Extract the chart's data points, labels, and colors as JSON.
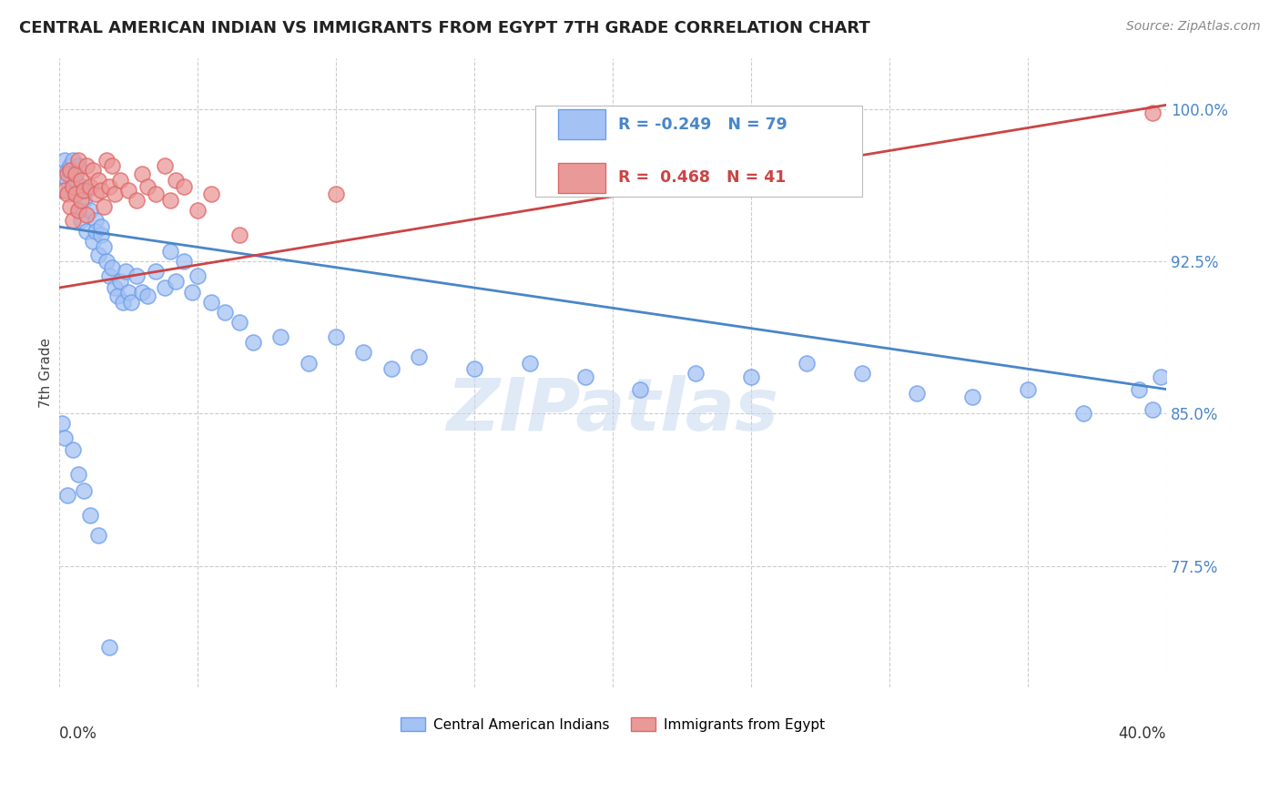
{
  "title": "CENTRAL AMERICAN INDIAN VS IMMIGRANTS FROM EGYPT 7TH GRADE CORRELATION CHART",
  "source": "Source: ZipAtlas.com",
  "ylabel": "7th Grade",
  "xmin": 0.0,
  "xmax": 0.4,
  "ymin": 0.715,
  "ymax": 1.025,
  "legend_blue_label": "Central American Indians",
  "legend_pink_label": "Immigrants from Egypt",
  "R_blue": -0.249,
  "N_blue": 79,
  "R_pink": 0.468,
  "N_pink": 41,
  "blue_color": "#a4c2f4",
  "pink_color": "#ea9999",
  "blue_edge_color": "#6d9eeb",
  "pink_edge_color": "#e06666",
  "blue_line_color": "#4a86c8",
  "pink_line_color": "#cc4444",
  "watermark_text": "ZIPatlas",
  "blue_trend_y0": 0.942,
  "blue_trend_y1": 0.862,
  "pink_trend_y0": 0.912,
  "pink_trend_y1": 1.002,
  "ytick_vals": [
    0.775,
    0.85,
    0.925,
    1.0
  ],
  "ytick_labels": [
    "77.5%",
    "85.0%",
    "92.5%",
    "100.0%"
  ],
  "xtick_vals": [
    0.0,
    0.05,
    0.1,
    0.15,
    0.2,
    0.25,
    0.3,
    0.35,
    0.4
  ],
  "blue_dots": {
    "x": [
      0.001,
      0.002,
      0.003,
      0.003,
      0.004,
      0.004,
      0.005,
      0.005,
      0.006,
      0.006,
      0.007,
      0.007,
      0.008,
      0.008,
      0.009,
      0.01,
      0.01,
      0.011,
      0.012,
      0.013,
      0.013,
      0.014,
      0.015,
      0.015,
      0.016,
      0.017,
      0.018,
      0.019,
      0.02,
      0.021,
      0.022,
      0.023,
      0.024,
      0.025,
      0.026,
      0.028,
      0.03,
      0.032,
      0.035,
      0.038,
      0.04,
      0.042,
      0.045,
      0.048,
      0.05,
      0.055,
      0.06,
      0.065,
      0.07,
      0.08,
      0.09,
      0.1,
      0.11,
      0.12,
      0.13,
      0.15,
      0.17,
      0.19,
      0.21,
      0.23,
      0.25,
      0.27,
      0.29,
      0.31,
      0.33,
      0.35,
      0.37,
      0.39,
      0.395,
      0.398,
      0.001,
      0.002,
      0.003,
      0.005,
      0.007,
      0.009,
      0.011,
      0.014,
      0.018
    ],
    "y": [
      0.96,
      0.975,
      0.97,
      0.965,
      0.972,
      0.968,
      0.975,
      0.96,
      0.965,
      0.958,
      0.972,
      0.95,
      0.962,
      0.945,
      0.955,
      0.96,
      0.94,
      0.95,
      0.935,
      0.945,
      0.94,
      0.928,
      0.938,
      0.942,
      0.932,
      0.925,
      0.918,
      0.922,
      0.912,
      0.908,
      0.915,
      0.905,
      0.92,
      0.91,
      0.905,
      0.918,
      0.91,
      0.908,
      0.92,
      0.912,
      0.93,
      0.915,
      0.925,
      0.91,
      0.918,
      0.905,
      0.9,
      0.895,
      0.885,
      0.888,
      0.875,
      0.888,
      0.88,
      0.872,
      0.878,
      0.872,
      0.875,
      0.868,
      0.862,
      0.87,
      0.868,
      0.875,
      0.87,
      0.86,
      0.858,
      0.862,
      0.85,
      0.862,
      0.852,
      0.868,
      0.845,
      0.838,
      0.81,
      0.832,
      0.82,
      0.812,
      0.8,
      0.79,
      0.735
    ]
  },
  "pink_dots": {
    "x": [
      0.002,
      0.003,
      0.003,
      0.004,
      0.004,
      0.005,
      0.005,
      0.006,
      0.006,
      0.007,
      0.007,
      0.008,
      0.008,
      0.009,
      0.01,
      0.01,
      0.011,
      0.012,
      0.013,
      0.014,
      0.015,
      0.016,
      0.017,
      0.018,
      0.019,
      0.02,
      0.022,
      0.025,
      0.028,
      0.03,
      0.032,
      0.035,
      0.038,
      0.04,
      0.042,
      0.045,
      0.05,
      0.055,
      0.065,
      0.1,
      0.395
    ],
    "y": [
      0.96,
      0.958,
      0.968,
      0.952,
      0.97,
      0.962,
      0.945,
      0.968,
      0.958,
      0.975,
      0.95,
      0.965,
      0.955,
      0.96,
      0.972,
      0.948,
      0.962,
      0.97,
      0.958,
      0.965,
      0.96,
      0.952,
      0.975,
      0.962,
      0.972,
      0.958,
      0.965,
      0.96,
      0.955,
      0.968,
      0.962,
      0.958,
      0.972,
      0.955,
      0.965,
      0.962,
      0.95,
      0.958,
      0.938,
      0.958,
      0.998
    ]
  }
}
